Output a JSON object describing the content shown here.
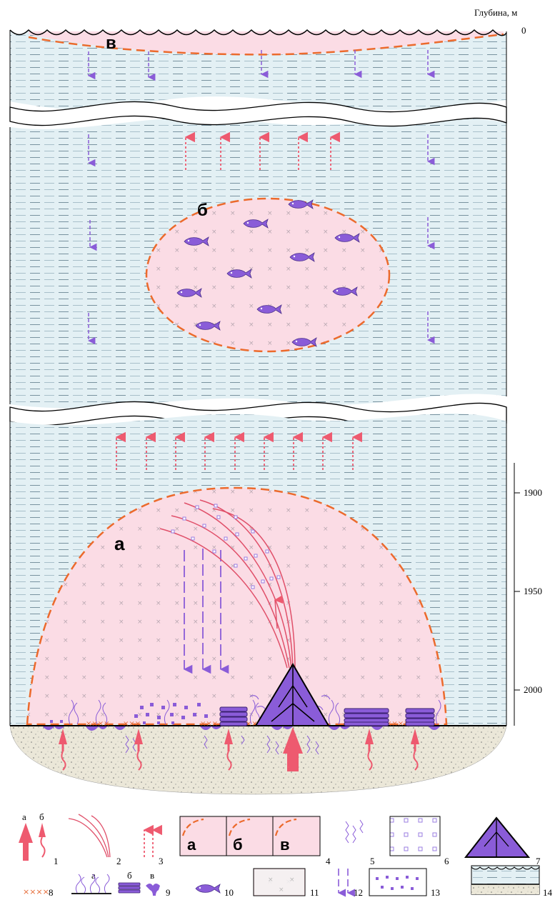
{
  "header": {
    "depth_title": "Глубина, м"
  },
  "scale": {
    "top_tick": "0",
    "ticks": [
      {
        "value": 1900,
        "label": "1900"
      },
      {
        "value": 1950,
        "label": "1950"
      },
      {
        "value": 2000,
        "label": "2000"
      }
    ]
  },
  "zones": {
    "a": "а",
    "b": "б",
    "v": "в"
  },
  "legend": {
    "item1": {
      "num": "1",
      "sub_a": "а",
      "sub_b": "б"
    },
    "item2": {
      "num": "2"
    },
    "item3": {
      "num": "3"
    },
    "item4": {
      "num": "4",
      "sub_a": "а",
      "sub_b": "б",
      "sub_v": "в"
    },
    "item5": {
      "num": "5"
    },
    "item6": {
      "num": "6"
    },
    "item7": {
      "num": "7"
    },
    "item8": {
      "num": "8",
      "symbol": "××××"
    },
    "item9": {
      "num": "9",
      "sub_a": "а",
      "sub_b": "б",
      "sub_v": "в"
    },
    "item10": {
      "num": "10"
    },
    "item11": {
      "num": "11"
    },
    "item12": {
      "num": "12"
    },
    "item13": {
      "num": "13"
    },
    "item14": {
      "num": "14"
    }
  },
  "colors": {
    "water": "#dfeef3",
    "zone_fill": "#fbdde6",
    "dash_orange": "#ec6a2c",
    "arrow_purple": "#8a5cd8",
    "arrow_pink": "#ee5a6f",
    "fish_purple": "#8a5cd8",
    "sediment": "#ece8da"
  }
}
